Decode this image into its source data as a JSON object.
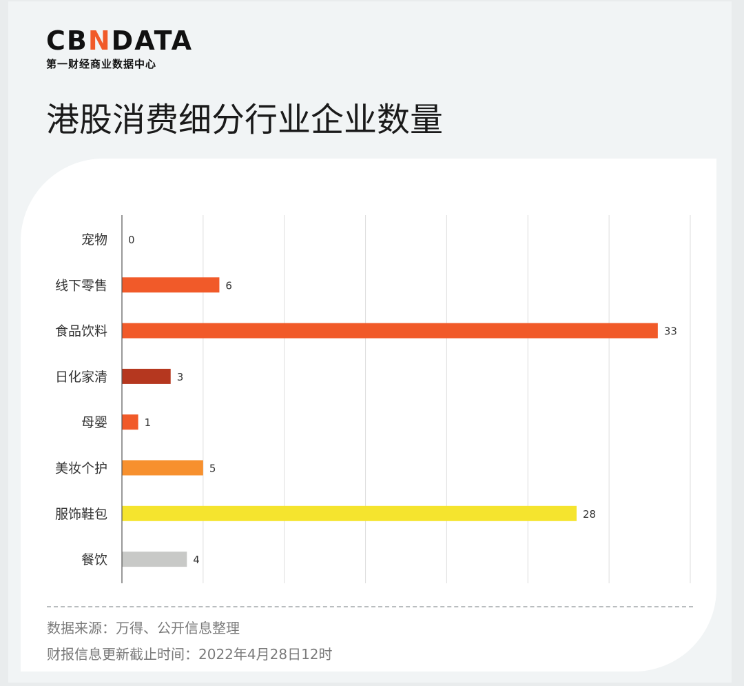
{
  "logo": {
    "wordmark_pre": "CB",
    "wordmark_accent": "N",
    "wordmark_post": "DATA",
    "tagline": "第一财经商业数据中心"
  },
  "title": "港股消费细分行业企业数量",
  "chart_data": {
    "type": "bar",
    "orientation": "horizontal",
    "categories": [
      "宠物",
      "线下零售",
      "食品饮料",
      "日化家清",
      "母婴",
      "美妆个护",
      "服饰鞋包",
      "餐饮"
    ],
    "values": [
      0,
      6,
      33,
      3,
      1,
      5,
      28,
      4
    ],
    "colors": [
      "#f15a29",
      "#f15a29",
      "#f15a29",
      "#b5371f",
      "#f15a29",
      "#f7902e",
      "#f5e42e",
      "#c8c9c7"
    ],
    "xlim": [
      0,
      35
    ],
    "grid": true,
    "data_labels": true,
    "title": "",
    "xlabel": "",
    "ylabel": ""
  },
  "footnotes": {
    "source": "数据来源：万得、公开信息整理",
    "date": "财报信息更新截止时间：2022年4月28日12时"
  }
}
